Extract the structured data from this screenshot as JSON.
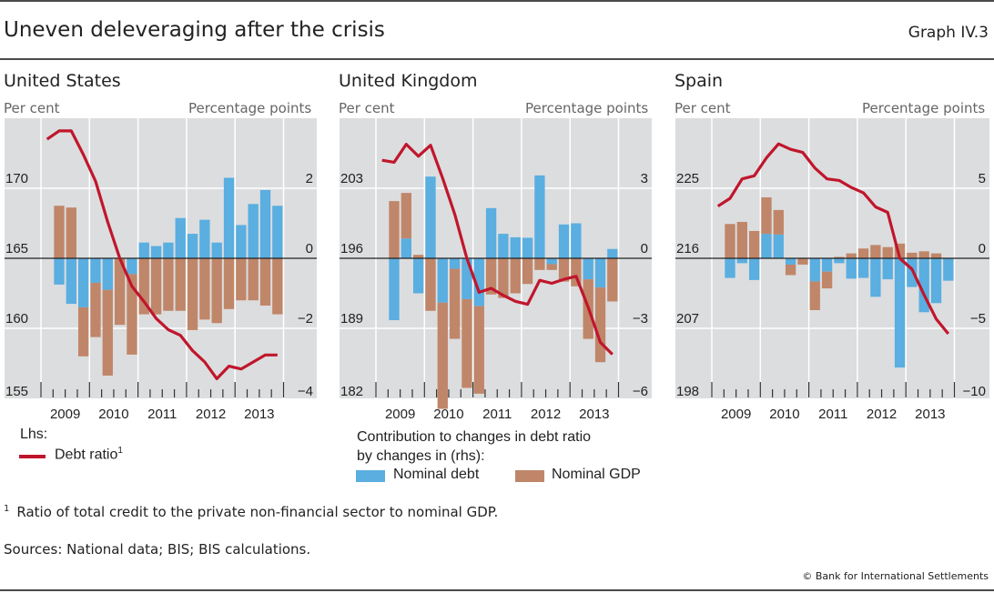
{
  "header": {
    "title": "Uneven deleveraging after the crisis",
    "graph_number": "Graph IV.3"
  },
  "colors": {
    "debt_ratio": "#c0162c",
    "nominal_debt": "#5aaee0",
    "nominal_gdp": "#c08669",
    "plot_bg": "#dcdddf"
  },
  "legend": {
    "lhs_label": "Lhs:",
    "debt_ratio_label": "Debt ratio",
    "debt_ratio_sup": "1",
    "rhs_heading_line1": "Contribution to changes in debt ratio",
    "rhs_heading_line2": "by changes in (rhs):",
    "nominal_debt_label": "Nominal debt",
    "nominal_gdp_label": "Nominal GDP"
  },
  "footnote": {
    "marker": "1",
    "text": "Ratio of total credit to the private non-financial sector to nominal GDP."
  },
  "sources": "Sources: National data; BIS; BIS calculations.",
  "copyright": "© Bank for International Settlements",
  "chart_data": [
    {
      "type": "bar+line",
      "title": "United States",
      "ylabel_left": "Per cent",
      "ylabel_right": "Percentage points",
      "ylim_left": [
        155,
        175
      ],
      "ylim_right": [
        -4,
        4
      ],
      "yticks_left": [
        155,
        160,
        165,
        170
      ],
      "yticks_right": [
        -4,
        -2,
        0,
        2
      ],
      "x_years": [
        "2009",
        "2010",
        "2011",
        "2012",
        "2013"
      ],
      "line_quarters": [
        "2009Q1",
        "2009Q2",
        "2009Q3",
        "2009Q4",
        "2010Q1",
        "2010Q2",
        "2010Q3",
        "2010Q4",
        "2011Q1",
        "2011Q2",
        "2011Q3",
        "2011Q4",
        "2012Q1",
        "2012Q2",
        "2012Q3",
        "2012Q4",
        "2013Q1",
        "2013Q2",
        "2013Q3",
        "2013Q4"
      ],
      "debt_ratio": [
        173.5,
        174.1,
        174.1,
        172.4,
        170.5,
        167.6,
        165.0,
        163.0,
        161.9,
        160.7,
        159.9,
        159.5,
        158.4,
        157.6,
        156.4,
        157.3,
        157.1,
        157.6,
        158.1,
        158.1
      ],
      "bar_quarters": [
        "2009Q2",
        "2009Q3",
        "2009Q4",
        "2010Q1",
        "2010Q2",
        "2010Q3",
        "2010Q4",
        "2011Q1",
        "2011Q2",
        "2011Q3",
        "2011Q4",
        "2012Q1",
        "2012Q2",
        "2012Q3",
        "2012Q4",
        "2013Q1",
        "2013Q2",
        "2013Q3",
        "2013Q4"
      ],
      "nominal_debt": [
        -0.75,
        -1.3,
        -1.4,
        -0.7,
        -0.9,
        0.0,
        -0.45,
        0.45,
        0.35,
        0.45,
        1.15,
        0.7,
        1.1,
        0.45,
        2.3,
        0.95,
        1.55,
        1.95,
        1.5
      ],
      "nominal_gdp": [
        1.5,
        1.45,
        -1.4,
        -1.55,
        -2.45,
        -1.9,
        -2.3,
        -1.6,
        -1.6,
        -1.5,
        -1.5,
        -2.05,
        -1.75,
        -1.85,
        -1.45,
        -1.2,
        -1.2,
        -1.35,
        -1.6
      ]
    },
    {
      "type": "bar+line",
      "title": "United Kingdom",
      "ylabel_left": "Per cent",
      "ylabel_right": "Percentage points",
      "ylim_left": [
        182,
        210
      ],
      "ylim_right": [
        -6,
        6
      ],
      "yticks_left": [
        182,
        189,
        196,
        203
      ],
      "yticks_right": [
        -6,
        -3,
        0,
        3
      ],
      "x_years": [
        "2009",
        "2010",
        "2011",
        "2012",
        "2013"
      ],
      "line_quarters": [
        "2009Q1",
        "2009Q2",
        "2009Q3",
        "2009Q4",
        "2010Q1",
        "2010Q2",
        "2010Q3",
        "2010Q4",
        "2011Q1",
        "2011Q2",
        "2011Q3",
        "2011Q4",
        "2012Q1",
        "2012Q2",
        "2012Q3",
        "2012Q4",
        "2013Q1",
        "2013Q2",
        "2013Q3",
        "2013Q4"
      ],
      "debt_ratio": [
        205.8,
        205.6,
        207.4,
        206.2,
        207.3,
        204.0,
        200.4,
        196.0,
        192.6,
        193.0,
        192.3,
        191.7,
        191.4,
        193.8,
        193.5,
        193.9,
        194.2,
        191.1,
        187.6,
        186.4
      ],
      "bar_quarters": [
        "2009Q2",
        "2009Q3",
        "2009Q4",
        "2010Q1",
        "2010Q2",
        "2010Q3",
        "2010Q4",
        "2011Q1",
        "2011Q2",
        "2011Q3",
        "2011Q4",
        "2012Q1",
        "2012Q2",
        "2012Q3",
        "2012Q4",
        "2013Q1",
        "2013Q2",
        "2013Q3",
        "2013Q4"
      ],
      "nominal_debt": [
        -2.65,
        0.85,
        -1.5,
        3.5,
        -1.9,
        -0.45,
        -1.75,
        -2.05,
        2.15,
        1.05,
        0.9,
        0.88,
        3.55,
        -0.25,
        1.45,
        1.5,
        -0.9,
        -1.25,
        0.4
      ],
      "nominal_gdp": [
        2.45,
        1.95,
        0.15,
        -2.25,
        -4.55,
        -3.0,
        -3.8,
        -3.75,
        -1.55,
        -1.7,
        -1.5,
        -1.1,
        -0.5,
        -0.25,
        -1.0,
        -1.2,
        -2.55,
        -3.2,
        -1.85
      ]
    },
    {
      "type": "bar+line",
      "title": "Spain",
      "ylabel_left": "Per cent",
      "ylabel_right": "Percentage points",
      "ylim_left": [
        198,
        234
      ],
      "ylim_right": [
        -10,
        10
      ],
      "yticks_left": [
        198,
        207,
        216,
        225
      ],
      "yticks_right": [
        -10,
        -5,
        0,
        5
      ],
      "x_years": [
        "2009",
        "2010",
        "2011",
        "2012",
        "2013"
      ],
      "line_quarters": [
        "2009Q1",
        "2009Q2",
        "2009Q3",
        "2009Q4",
        "2010Q1",
        "2010Q2",
        "2010Q3",
        "2010Q4",
        "2011Q1",
        "2011Q2",
        "2011Q3",
        "2011Q4",
        "2012Q1",
        "2012Q2",
        "2012Q3",
        "2012Q4",
        "2013Q1",
        "2013Q2",
        "2013Q3",
        "2013Q4"
      ],
      "debt_ratio": [
        222.7,
        223.7,
        226.2,
        226.6,
        228.9,
        230.7,
        230.0,
        229.6,
        227.6,
        226.2,
        226.0,
        225.1,
        224.4,
        222.6,
        221.9,
        216.0,
        214.6,
        211.3,
        208.2,
        206.3
      ],
      "bar_quarters": [
        "2009Q2",
        "2009Q3",
        "2009Q4",
        "2010Q1",
        "2010Q2",
        "2010Q3",
        "2010Q4",
        "2011Q1",
        "2011Q2",
        "2011Q3",
        "2011Q4",
        "2012Q1",
        "2012Q2",
        "2012Q3",
        "2012Q4",
        "2013Q1",
        "2013Q2",
        "2013Q3",
        "2013Q4"
      ],
      "nominal_debt": [
        -1.4,
        -0.35,
        -1.55,
        1.75,
        1.7,
        -0.45,
        0.0,
        -1.65,
        -0.95,
        -0.35,
        -1.45,
        -1.4,
        -2.75,
        -1.5,
        -7.8,
        -2.05,
        -3.85,
        -3.2,
        -1.6
      ],
      "nominal_gdp": [
        2.45,
        2.6,
        1.95,
        2.6,
        1.75,
        -0.75,
        -0.45,
        -2.05,
        -1.2,
        0.1,
        0.35,
        0.7,
        0.95,
        0.8,
        1.05,
        0.4,
        0.5,
        0.35,
        0.0
      ]
    }
  ]
}
